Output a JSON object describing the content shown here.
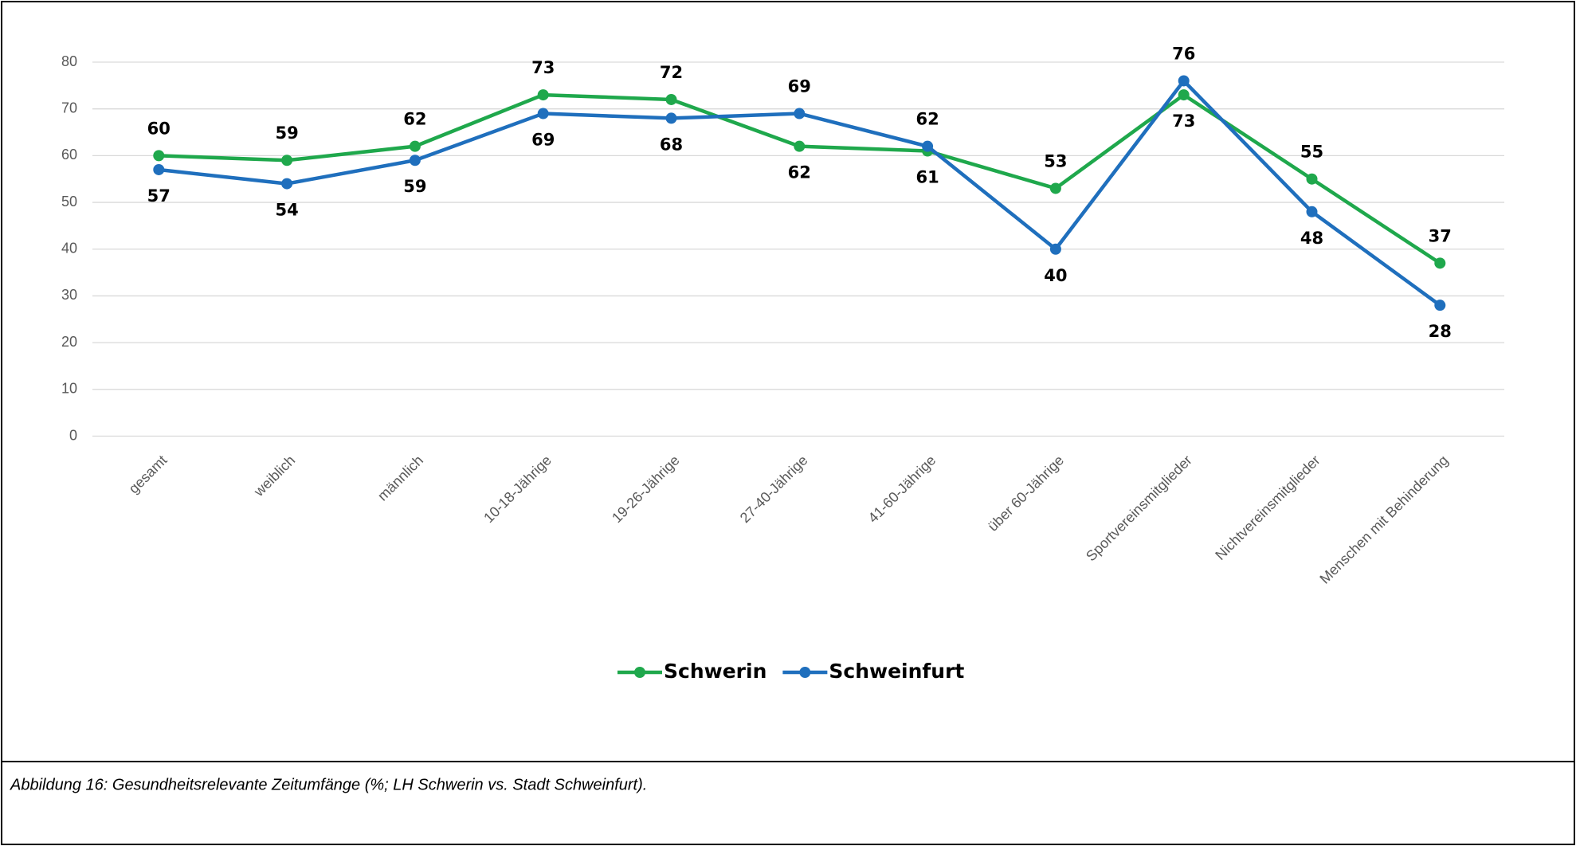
{
  "chart_data": {
    "type": "line",
    "caption": "Abbildung 16: Gesundheitsrelevante Zeitumfänge (%; LH Schwerin vs. Stadt Schweinfurt).",
    "categories": [
      "gesamt",
      "weiblich",
      "männlich",
      "10-18-Jährige",
      "19-26-Jährige",
      "27-40-Jährige",
      "41-60-Jährige",
      "über 60-Jährige",
      "Sportvereinsmitglieder",
      "Nichtvereinsmitglieder",
      "Menschen mit Behinderung"
    ],
    "series": [
      {
        "name": "Schwerin",
        "color": "#1fa84c",
        "values": [
          60,
          59,
          62,
          73,
          72,
          62,
          61,
          53,
          73,
          55,
          37
        ]
      },
      {
        "name": "Schweinfurt",
        "color": "#1f6fbd",
        "values": [
          57,
          54,
          59,
          69,
          68,
          69,
          62,
          40,
          76,
          48,
          28
        ]
      }
    ],
    "ylim": [
      0,
      80
    ],
    "yticks": [
      0,
      10,
      20,
      30,
      40,
      50,
      60,
      70,
      80
    ],
    "grid": true,
    "legend": "bottom"
  }
}
